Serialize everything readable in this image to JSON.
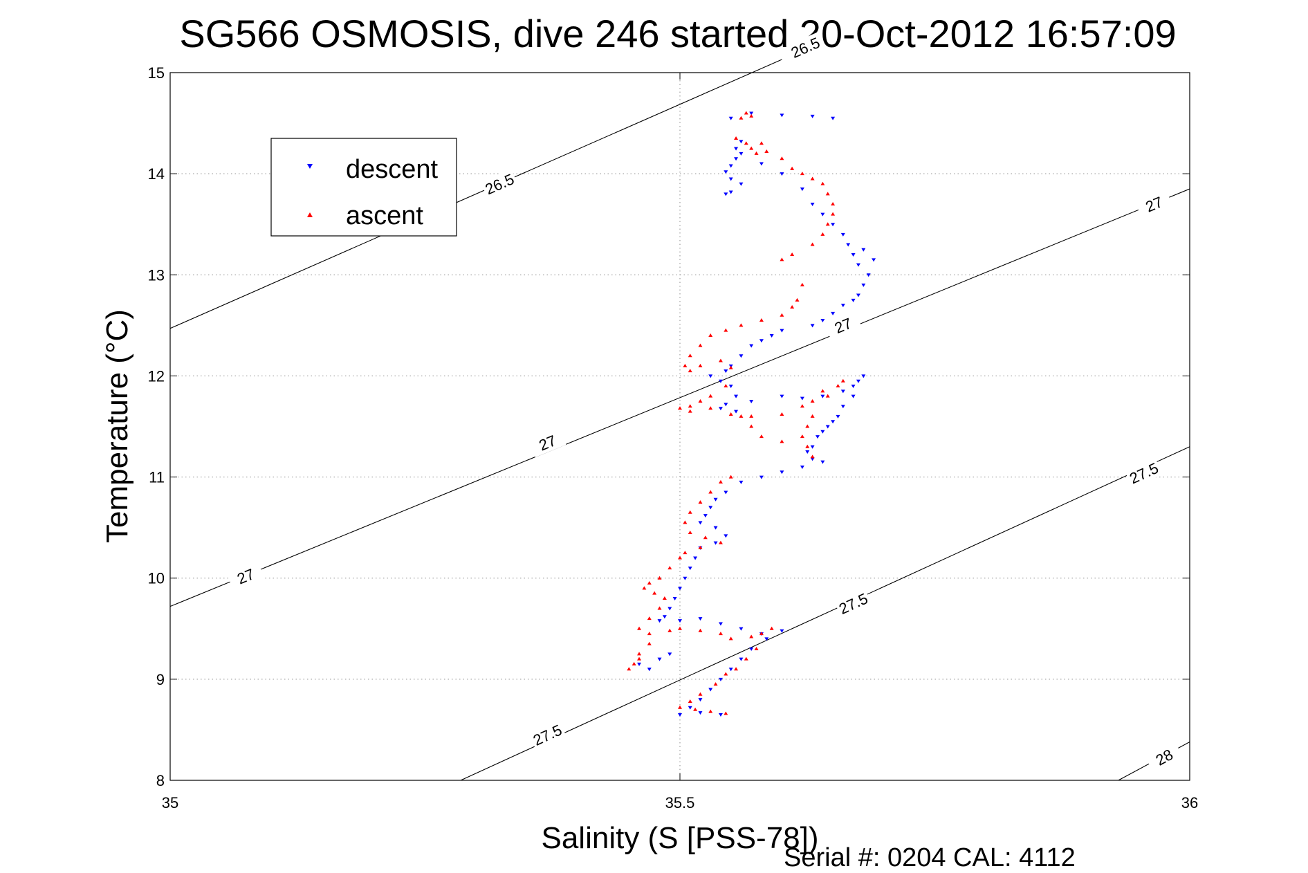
{
  "chart_data": {
    "type": "scatter",
    "title": "SG566 OSMOSIS, dive 246 started 20-Oct-2012 16:57:09",
    "xlabel": "Salinity (S [PSS-78])",
    "ylabel": "Temperature (°C)",
    "xlim": [
      35,
      36
    ],
    "ylim": [
      8,
      15
    ],
    "xticks": [
      35,
      35.5,
      36
    ],
    "yticks": [
      8,
      9,
      10,
      11,
      12,
      13,
      14,
      15
    ],
    "x_tick_labels": [
      "35",
      "35.5",
      "36"
    ],
    "y_tick_labels": [
      "8",
      "9",
      "10",
      "11",
      "12",
      "13",
      "14",
      "15"
    ],
    "grid": true,
    "legend_position": "top-left",
    "footer": "Serial #: 0204  CAL: 4112",
    "colors": {
      "descent": "#0000ff",
      "ascent": "#ff0000",
      "contour": "#000000"
    },
    "contours": [
      {
        "level": "26.5",
        "endpoints": [
          [
            35,
            12.47
          ],
          [
            35.6,
            15.13
          ]
        ],
        "labels": [
          [
            35.323,
            13.9
          ],
          [
            35.623,
            15.25
          ]
        ]
      },
      {
        "level": "27",
        "endpoints": [
          [
            35,
            9.72
          ],
          [
            36,
            13.85
          ]
        ],
        "labels": [
          [
            35.074,
            10.02
          ],
          [
            35.37,
            11.34
          ],
          [
            35.66,
            12.5
          ],
          [
            35.965,
            13.7
          ]
        ]
      },
      {
        "level": "27.5",
        "endpoints": [
          [
            35.285,
            8.0
          ],
          [
            36,
            11.3
          ]
        ],
        "labels": [
          [
            35.37,
            8.45
          ],
          [
            35.67,
            9.75
          ],
          [
            35.955,
            11.04
          ]
        ]
      },
      {
        "level": "28",
        "endpoints": [
          [
            35.93,
            8.0
          ],
          [
            36,
            8.38
          ]
        ],
        "labels": [
          [
            35.975,
            8.23
          ]
        ]
      }
    ],
    "series": [
      {
        "name": "descent",
        "marker": "triangle-down",
        "points": [
          [
            35.55,
            14.55
          ],
          [
            35.57,
            14.6
          ],
          [
            35.6,
            14.58
          ],
          [
            35.63,
            14.57
          ],
          [
            35.65,
            14.55
          ],
          [
            35.56,
            14.32
          ],
          [
            35.555,
            14.25
          ],
          [
            35.56,
            14.2
          ],
          [
            35.555,
            14.15
          ],
          [
            35.55,
            14.08
          ],
          [
            35.545,
            14.02
          ],
          [
            35.55,
            13.95
          ],
          [
            35.56,
            13.9
          ],
          [
            35.55,
            13.82
          ],
          [
            35.545,
            13.8
          ],
          [
            35.58,
            14.1
          ],
          [
            35.6,
            14.0
          ],
          [
            35.62,
            13.85
          ],
          [
            35.63,
            13.7
          ],
          [
            35.64,
            13.6
          ],
          [
            35.65,
            13.5
          ],
          [
            35.66,
            13.4
          ],
          [
            35.665,
            13.3
          ],
          [
            35.67,
            13.2
          ],
          [
            35.675,
            13.1
          ],
          [
            35.68,
            13.25
          ],
          [
            35.69,
            13.15
          ],
          [
            35.685,
            13.0
          ],
          [
            35.68,
            12.9
          ],
          [
            35.675,
            12.8
          ],
          [
            35.67,
            12.75
          ],
          [
            35.66,
            12.7
          ],
          [
            35.65,
            12.62
          ],
          [
            35.64,
            12.55
          ],
          [
            35.63,
            12.5
          ],
          [
            35.6,
            12.45
          ],
          [
            35.59,
            12.4
          ],
          [
            35.58,
            12.35
          ],
          [
            35.57,
            12.3
          ],
          [
            35.56,
            12.2
          ],
          [
            35.55,
            12.1
          ],
          [
            35.545,
            12.05
          ],
          [
            35.53,
            12.0
          ],
          [
            35.54,
            11.95
          ],
          [
            35.55,
            11.9
          ],
          [
            35.555,
            11.8
          ],
          [
            35.545,
            11.72
          ],
          [
            35.54,
            11.68
          ],
          [
            35.555,
            11.65
          ],
          [
            35.57,
            11.75
          ],
          [
            35.6,
            11.8
          ],
          [
            35.62,
            11.78
          ],
          [
            35.64,
            11.8
          ],
          [
            35.66,
            11.85
          ],
          [
            35.67,
            11.9
          ],
          [
            35.68,
            12.0
          ],
          [
            35.675,
            11.95
          ],
          [
            35.67,
            11.8
          ],
          [
            35.66,
            11.7
          ],
          [
            35.655,
            11.6
          ],
          [
            35.65,
            11.55
          ],
          [
            35.645,
            11.5
          ],
          [
            35.64,
            11.45
          ],
          [
            35.635,
            11.4
          ],
          [
            35.63,
            11.3
          ],
          [
            35.625,
            11.25
          ],
          [
            35.63,
            11.18
          ],
          [
            35.64,
            11.15
          ],
          [
            35.62,
            11.1
          ],
          [
            35.6,
            11.05
          ],
          [
            35.58,
            11.0
          ],
          [
            35.56,
            10.95
          ],
          [
            35.545,
            10.85
          ],
          [
            35.535,
            10.78
          ],
          [
            35.53,
            10.7
          ],
          [
            35.525,
            10.62
          ],
          [
            35.52,
            10.55
          ],
          [
            35.535,
            10.5
          ],
          [
            35.545,
            10.42
          ],
          [
            35.535,
            10.35
          ],
          [
            35.52,
            10.3
          ],
          [
            35.515,
            10.2
          ],
          [
            35.51,
            10.1
          ],
          [
            35.505,
            10.0
          ],
          [
            35.5,
            9.9
          ],
          [
            35.495,
            9.8
          ],
          [
            35.49,
            9.7
          ],
          [
            35.485,
            9.62
          ],
          [
            35.48,
            9.58
          ],
          [
            35.5,
            9.58
          ],
          [
            35.52,
            9.6
          ],
          [
            35.54,
            9.55
          ],
          [
            35.56,
            9.5
          ],
          [
            35.58,
            9.45
          ],
          [
            35.6,
            9.48
          ],
          [
            35.585,
            9.4
          ],
          [
            35.57,
            9.3
          ],
          [
            35.56,
            9.2
          ],
          [
            35.55,
            9.1
          ],
          [
            35.54,
            9.0
          ],
          [
            35.53,
            8.9
          ],
          [
            35.52,
            8.8
          ],
          [
            35.51,
            8.72
          ],
          [
            35.5,
            8.65
          ],
          [
            35.52,
            8.67
          ],
          [
            35.54,
            8.65
          ],
          [
            35.46,
            9.15
          ],
          [
            35.47,
            9.1
          ],
          [
            35.48,
            9.2
          ],
          [
            35.49,
            9.25
          ]
        ]
      },
      {
        "name": "ascent",
        "marker": "triangle-up",
        "points": [
          [
            35.56,
            14.55
          ],
          [
            35.565,
            14.6
          ],
          [
            35.57,
            14.57
          ],
          [
            35.555,
            14.35
          ],
          [
            35.565,
            14.3
          ],
          [
            35.57,
            14.25
          ],
          [
            35.575,
            14.2
          ],
          [
            35.58,
            14.3
          ],
          [
            35.585,
            14.22
          ],
          [
            35.6,
            14.15
          ],
          [
            35.61,
            14.05
          ],
          [
            35.62,
            14.0
          ],
          [
            35.63,
            13.95
          ],
          [
            35.64,
            13.9
          ],
          [
            35.645,
            13.8
          ],
          [
            35.65,
            13.7
          ],
          [
            35.65,
            13.6
          ],
          [
            35.645,
            13.5
          ],
          [
            35.64,
            13.4
          ],
          [
            35.63,
            13.3
          ],
          [
            35.61,
            13.2
          ],
          [
            35.6,
            13.15
          ],
          [
            35.62,
            12.9
          ],
          [
            35.615,
            12.75
          ],
          [
            35.61,
            12.68
          ],
          [
            35.6,
            12.6
          ],
          [
            35.58,
            12.55
          ],
          [
            35.56,
            12.5
          ],
          [
            35.545,
            12.45
          ],
          [
            35.53,
            12.4
          ],
          [
            35.52,
            12.3
          ],
          [
            35.51,
            12.2
          ],
          [
            35.505,
            12.1
          ],
          [
            35.51,
            12.05
          ],
          [
            35.52,
            12.1
          ],
          [
            35.54,
            12.15
          ],
          [
            35.55,
            12.08
          ],
          [
            35.545,
            11.9
          ],
          [
            35.53,
            11.8
          ],
          [
            35.52,
            11.75
          ],
          [
            35.51,
            11.7
          ],
          [
            35.5,
            11.68
          ],
          [
            35.51,
            11.65
          ],
          [
            35.53,
            11.68
          ],
          [
            35.55,
            11.62
          ],
          [
            35.57,
            11.6
          ],
          [
            35.6,
            11.62
          ],
          [
            35.62,
            11.7
          ],
          [
            35.63,
            11.75
          ],
          [
            35.64,
            11.85
          ],
          [
            35.655,
            11.9
          ],
          [
            35.66,
            11.95
          ],
          [
            35.645,
            11.8
          ],
          [
            35.63,
            11.6
          ],
          [
            35.625,
            11.5
          ],
          [
            35.62,
            11.4
          ],
          [
            35.625,
            11.3
          ],
          [
            35.63,
            11.2
          ],
          [
            35.6,
            11.35
          ],
          [
            35.58,
            11.4
          ],
          [
            35.57,
            11.5
          ],
          [
            35.56,
            11.6
          ],
          [
            35.55,
            11.0
          ],
          [
            35.54,
            10.95
          ],
          [
            35.53,
            10.85
          ],
          [
            35.52,
            10.75
          ],
          [
            35.51,
            10.65
          ],
          [
            35.505,
            10.55
          ],
          [
            35.51,
            10.45
          ],
          [
            35.525,
            10.4
          ],
          [
            35.54,
            10.35
          ],
          [
            35.52,
            10.3
          ],
          [
            35.505,
            10.25
          ],
          [
            35.5,
            10.2
          ],
          [
            35.49,
            10.1
          ],
          [
            35.48,
            10.0
          ],
          [
            35.47,
            9.95
          ],
          [
            35.465,
            9.9
          ],
          [
            35.475,
            9.85
          ],
          [
            35.485,
            9.8
          ],
          [
            35.48,
            9.7
          ],
          [
            35.47,
            9.6
          ],
          [
            35.46,
            9.5
          ],
          [
            35.47,
            9.45
          ],
          [
            35.49,
            9.48
          ],
          [
            35.5,
            9.5
          ],
          [
            35.52,
            9.48
          ],
          [
            35.54,
            9.45
          ],
          [
            35.55,
            9.4
          ],
          [
            35.57,
            9.42
          ],
          [
            35.58,
            9.45
          ],
          [
            35.59,
            9.5
          ],
          [
            35.575,
            9.3
          ],
          [
            35.565,
            9.2
          ],
          [
            35.555,
            9.1
          ],
          [
            35.545,
            9.05
          ],
          [
            35.535,
            8.95
          ],
          [
            35.52,
            8.85
          ],
          [
            35.51,
            8.78
          ],
          [
            35.5,
            8.72
          ],
          [
            35.515,
            8.7
          ],
          [
            35.53,
            8.68
          ],
          [
            35.545,
            8.66
          ],
          [
            35.47,
            9.35
          ],
          [
            35.46,
            9.25
          ],
          [
            35.455,
            9.15
          ],
          [
            35.45,
            9.1
          ],
          [
            35.46,
            9.2
          ]
        ]
      }
    ]
  }
}
